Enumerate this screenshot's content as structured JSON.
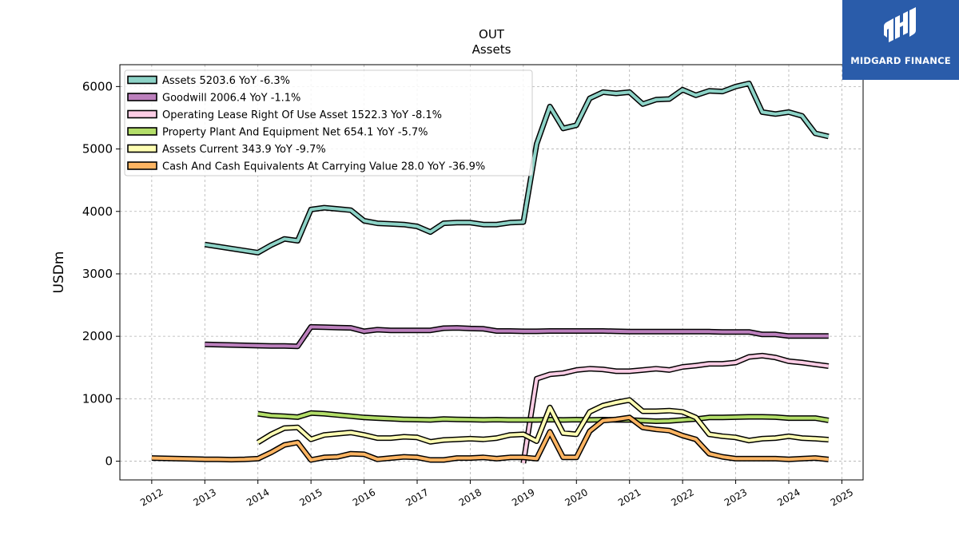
{
  "brand": {
    "name": "MIDGARD FINANCE",
    "bg": "#2a5caa"
  },
  "chart_data": {
    "type": "line",
    "title": "OUT",
    "subtitle": "Assets",
    "xlabel": "",
    "ylabel": "USDm",
    "xlim": [
      2011.4,
      2025.4
    ],
    "ylim": [
      -300,
      6350
    ],
    "xticks": [
      "2012",
      "2013",
      "2014",
      "2015",
      "2016",
      "2017",
      "2018",
      "2019",
      "2020",
      "2021",
      "2022",
      "2023",
      "2024",
      "2025"
    ],
    "yticks": [
      "0",
      "1000",
      "2000",
      "3000",
      "4000",
      "5000",
      "6000"
    ],
    "grid": true,
    "legend_position": "top-left",
    "series": [
      {
        "name": "Assets",
        "legend": "Assets  5203.6 YoY -6.3%",
        "color": "#8dd3c7",
        "x": [
          2013.0,
          2014.0,
          2014.25,
          2014.5,
          2014.75,
          2015.0,
          2015.25,
          2015.5,
          2015.75,
          2016.0,
          2016.25,
          2016.5,
          2016.75,
          2017.0,
          2017.25,
          2017.5,
          2017.75,
          2018.0,
          2018.25,
          2018.5,
          2018.75,
          2019.0,
          2019.25,
          2019.5,
          2019.75,
          2020.0,
          2020.25,
          2020.5,
          2020.75,
          2021.0,
          2021.25,
          2021.5,
          2021.75,
          2022.0,
          2022.25,
          2022.5,
          2022.75,
          2023.0,
          2023.25,
          2023.5,
          2023.75,
          2024.0,
          2024.25,
          2024.5,
          2024.75
        ],
        "y": [
          3470,
          3340,
          3460,
          3560,
          3530,
          4030,
          4060,
          4040,
          4020,
          3850,
          3810,
          3800,
          3790,
          3760,
          3670,
          3810,
          3820,
          3820,
          3790,
          3790,
          3820,
          3830,
          5080,
          5680,
          5330,
          5380,
          5810,
          5910,
          5890,
          5910,
          5720,
          5790,
          5800,
          5950,
          5860,
          5930,
          5920,
          6000,
          6050,
          5590,
          5560,
          5590,
          5530,
          5250,
          5200
        ]
      },
      {
        "name": "Goodwill",
        "legend": "Goodwill  2006.4 YoY -1.1%",
        "color": "#bc80bd",
        "x": [
          2013.0,
          2014.0,
          2014.25,
          2014.5,
          2014.75,
          2015.0,
          2015.25,
          2015.5,
          2015.75,
          2016.0,
          2016.25,
          2016.5,
          2016.75,
          2017.0,
          2017.25,
          2017.5,
          2017.75,
          2018.0,
          2018.25,
          2018.5,
          2018.75,
          2019.0,
          2019.25,
          2019.5,
          2019.75,
          2020.0,
          2020.25,
          2020.5,
          2020.75,
          2021.0,
          2021.25,
          2021.5,
          2021.75,
          2022.0,
          2022.25,
          2022.5,
          2022.75,
          2023.0,
          2023.25,
          2023.5,
          2023.75,
          2024.0,
          2024.25,
          2024.5,
          2024.75
        ],
        "y": [
          1870,
          1850,
          1845,
          1845,
          1840,
          2150,
          2145,
          2140,
          2135,
          2080,
          2105,
          2095,
          2095,
          2095,
          2095,
          2130,
          2135,
          2125,
          2120,
          2085,
          2085,
          2080,
          2080,
          2085,
          2085,
          2085,
          2085,
          2085,
          2080,
          2075,
          2075,
          2075,
          2075,
          2075,
          2075,
          2075,
          2070,
          2070,
          2070,
          2030,
          2030,
          2005,
          2005,
          2005,
          2006
        ]
      },
      {
        "name": "Operating Lease Right Of Use Asset",
        "legend": "Operating Lease Right Of Use Asset  1522.3 YoY -8.1%",
        "color": "#fccde5",
        "x": [
          2019.0,
          2019.25,
          2019.5,
          2019.75,
          2020.0,
          2020.25,
          2020.5,
          2020.75,
          2021.0,
          2021.25,
          2021.5,
          2021.75,
          2022.0,
          2022.25,
          2022.5,
          2022.75,
          2023.0,
          2023.25,
          2023.5,
          2023.75,
          2024.0,
          2024.25,
          2024.5,
          2024.75
        ],
        "y": [
          -30,
          1320,
          1390,
          1410,
          1460,
          1480,
          1470,
          1440,
          1440,
          1460,
          1480,
          1460,
          1510,
          1530,
          1560,
          1560,
          1580,
          1670,
          1690,
          1660,
          1600,
          1580,
          1550,
          1522
        ]
      },
      {
        "name": "Property Plant And Equipment Net",
        "legend": "Property Plant And Equipment Net  654.1 YoY -5.7%",
        "color": "#b3de69",
        "x": [
          2014.0,
          2014.25,
          2014.5,
          2014.75,
          2015.0,
          2015.25,
          2015.5,
          2015.75,
          2016.0,
          2016.25,
          2016.5,
          2016.75,
          2017.0,
          2017.25,
          2017.5,
          2017.75,
          2018.0,
          2018.25,
          2018.5,
          2018.75,
          2019.0,
          2019.25,
          2019.5,
          2019.75,
          2020.0,
          2020.25,
          2020.5,
          2020.75,
          2021.0,
          2021.25,
          2021.5,
          2021.75,
          2022.0,
          2022.25,
          2022.5,
          2022.75,
          2023.0,
          2023.25,
          2023.5,
          2023.75,
          2024.0,
          2024.25,
          2024.5,
          2024.75
        ],
        "y": [
          760,
          730,
          720,
          705,
          770,
          760,
          740,
          720,
          700,
          690,
          680,
          670,
          665,
          660,
          675,
          670,
          665,
          660,
          665,
          660,
          660,
          660,
          665,
          660,
          665,
          660,
          665,
          660,
          660,
          650,
          640,
          645,
          660,
          675,
          700,
          700,
          705,
          710,
          710,
          705,
          690,
          690,
          690,
          654
        ]
      },
      {
        "name": "Assets Current",
        "legend": "Assets Current  343.9 YoY -9.7%",
        "color": "#ffffb3",
        "x": [
          2014.0,
          2014.25,
          2014.5,
          2014.75,
          2015.0,
          2015.25,
          2015.5,
          2015.75,
          2016.0,
          2016.25,
          2016.5,
          2016.75,
          2017.0,
          2017.25,
          2017.5,
          2017.75,
          2018.0,
          2018.25,
          2018.5,
          2018.75,
          2019.0,
          2019.25,
          2019.5,
          2019.75,
          2020.0,
          2020.25,
          2020.5,
          2020.75,
          2021.0,
          2021.25,
          2021.5,
          2021.75,
          2022.0,
          2022.25,
          2022.5,
          2022.75,
          2023.0,
          2023.25,
          2023.5,
          2023.75,
          2024.0,
          2024.25,
          2024.5,
          2024.75
        ],
        "y": [
          300,
          430,
          530,
          540,
          350,
          420,
          440,
          460,
          420,
          370,
          370,
          390,
          380,
          310,
          340,
          350,
          360,
          350,
          370,
          420,
          430,
          320,
          860,
          450,
          430,
          790,
          890,
          940,
          980,
          800,
          800,
          810,
          790,
          700,
          430,
          400,
          380,
          330,
          360,
          370,
          400,
          370,
          360,
          344
        ]
      },
      {
        "name": "Cash And Cash Equivalents At Carrying Value",
        "legend": "Cash And Cash Equivalents At Carrying Value  28.0 YoY -36.9%",
        "color": "#fdb462",
        "x": [
          2012.0,
          2012.25,
          2012.5,
          2012.75,
          2013.0,
          2013.25,
          2013.5,
          2013.75,
          2014.0,
          2014.25,
          2014.5,
          2014.75,
          2015.0,
          2015.25,
          2015.5,
          2015.75,
          2016.0,
          2016.25,
          2016.5,
          2016.75,
          2017.0,
          2017.25,
          2017.5,
          2017.75,
          2018.0,
          2018.25,
          2018.5,
          2018.75,
          2019.0,
          2019.25,
          2019.5,
          2019.75,
          2020.0,
          2020.25,
          2020.5,
          2020.75,
          2021.0,
          2021.25,
          2021.5,
          2021.75,
          2022.0,
          2022.25,
          2022.5,
          2022.75,
          2023.0,
          2023.25,
          2023.5,
          2023.75,
          2024.0,
          2024.25,
          2024.5,
          2024.75
        ],
        "y": [
          50,
          45,
          40,
          35,
          30,
          30,
          25,
          30,
          40,
          140,
          260,
          300,
          20,
          60,
          70,
          120,
          110,
          30,
          50,
          70,
          60,
          20,
          20,
          50,
          50,
          60,
          40,
          60,
          60,
          40,
          470,
          60,
          60,
          480,
          650,
          670,
          700,
          540,
          510,
          490,
          410,
          350,
          120,
          70,
          40,
          40,
          40,
          40,
          30,
          40,
          50,
          28
        ]
      }
    ]
  }
}
